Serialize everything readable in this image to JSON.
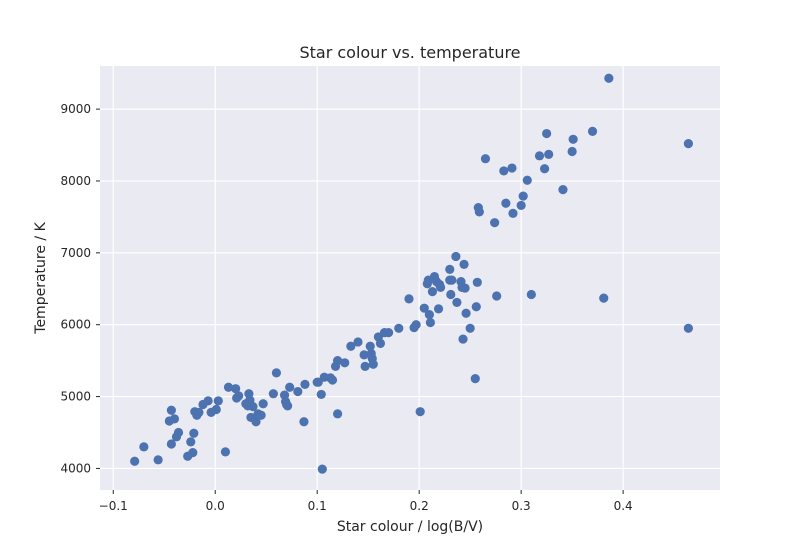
{
  "chart_data": {
    "type": "scatter",
    "title": "Star colour vs. temperature",
    "xlabel": "Star colour / log(B/V)",
    "ylabel": "Temperature / K",
    "xlim": [
      -0.113,
      0.495
    ],
    "ylim": [
      3700,
      9600
    ],
    "xticks": [
      -0.1,
      0.0,
      0.1,
      0.2,
      0.3,
      0.4
    ],
    "xtick_labels": [
      "−0.1",
      "0.0",
      "0.1",
      "0.2",
      "0.3",
      "0.4"
    ],
    "yticks": [
      4000,
      5000,
      6000,
      7000,
      8000,
      9000
    ],
    "ytick_labels": [
      "4000",
      "5000",
      "6000",
      "7000",
      "8000",
      "9000"
    ],
    "grid": true,
    "colors": {
      "background": "#eaeaf2",
      "marker": "#4c72b0",
      "grid": "#ffffff"
    },
    "points": [
      [
        -0.079,
        4100
      ],
      [
        -0.07,
        4300
      ],
      [
        -0.056,
        4120
      ],
      [
        -0.045,
        4660
      ],
      [
        -0.043,
        4810
      ],
      [
        -0.043,
        4340
      ],
      [
        -0.04,
        4690
      ],
      [
        -0.038,
        4440
      ],
      [
        -0.036,
        4500
      ],
      [
        -0.027,
        4170
      ],
      [
        -0.024,
        4370
      ],
      [
        -0.022,
        4220
      ],
      [
        -0.021,
        4490
      ],
      [
        -0.02,
        4790
      ],
      [
        -0.018,
        4740
      ],
      [
        -0.016,
        4780
      ],
      [
        -0.012,
        4890
      ],
      [
        -0.007,
        4940
      ],
      [
        -0.004,
        4780
      ],
      [
        0.001,
        4820
      ],
      [
        0.003,
        4940
      ],
      [
        0.01,
        4230
      ],
      [
        0.013,
        5130
      ],
      [
        0.02,
        5110
      ],
      [
        0.021,
        4980
      ],
      [
        0.023,
        5010
      ],
      [
        0.03,
        4900
      ],
      [
        0.032,
        4870
      ],
      [
        0.033,
        5040
      ],
      [
        0.034,
        4950
      ],
      [
        0.035,
        4710
      ],
      [
        0.037,
        4860
      ],
      [
        0.04,
        4650
      ],
      [
        0.042,
        4760
      ],
      [
        0.045,
        4740
      ],
      [
        0.047,
        4900
      ],
      [
        0.057,
        5040
      ],
      [
        0.06,
        5330
      ],
      [
        0.068,
        5020
      ],
      [
        0.069,
        4930
      ],
      [
        0.07,
        4890
      ],
      [
        0.071,
        4870
      ],
      [
        0.073,
        5130
      ],
      [
        0.081,
        5070
      ],
      [
        0.087,
        4650
      ],
      [
        0.088,
        5170
      ],
      [
        0.1,
        5200
      ],
      [
        0.101,
        5200
      ],
      [
        0.104,
        5030
      ],
      [
        0.105,
        3990
      ],
      [
        0.107,
        5270
      ],
      [
        0.113,
        5260
      ],
      [
        0.115,
        5230
      ],
      [
        0.118,
        5420
      ],
      [
        0.12,
        5500
      ],
      [
        0.12,
        4760
      ],
      [
        0.127,
        5470
      ],
      [
        0.133,
        5700
      ],
      [
        0.14,
        5760
      ],
      [
        0.146,
        5580
      ],
      [
        0.147,
        5420
      ],
      [
        0.152,
        5700
      ],
      [
        0.153,
        5600
      ],
      [
        0.154,
        5530
      ],
      [
        0.155,
        5450
      ],
      [
        0.16,
        5830
      ],
      [
        0.162,
        5740
      ],
      [
        0.166,
        5890
      ],
      [
        0.17,
        5890
      ],
      [
        0.18,
        5950
      ],
      [
        0.19,
        6360
      ],
      [
        0.195,
        5960
      ],
      [
        0.197,
        6000
      ],
      [
        0.201,
        4790
      ],
      [
        0.205,
        6230
      ],
      [
        0.208,
        6570
      ],
      [
        0.209,
        6620
      ],
      [
        0.21,
        6140
      ],
      [
        0.211,
        6030
      ],
      [
        0.213,
        6460
      ],
      [
        0.215,
        6670
      ],
      [
        0.217,
        6600
      ],
      [
        0.219,
        6220
      ],
      [
        0.22,
        6560
      ],
      [
        0.221,
        6520
      ],
      [
        0.23,
        6770
      ],
      [
        0.23,
        6620
      ],
      [
        0.231,
        6420
      ],
      [
        0.232,
        6620
      ],
      [
        0.236,
        6950
      ],
      [
        0.237,
        6310
      ],
      [
        0.241,
        6600
      ],
      [
        0.242,
        6520
      ],
      [
        0.243,
        5800
      ],
      [
        0.244,
        6840
      ],
      [
        0.245,
        6510
      ],
      [
        0.246,
        6160
      ],
      [
        0.25,
        5950
      ],
      [
        0.255,
        5250
      ],
      [
        0.256,
        6250
      ],
      [
        0.257,
        6590
      ],
      [
        0.258,
        7630
      ],
      [
        0.259,
        7570
      ],
      [
        0.265,
        8310
      ],
      [
        0.274,
        7420
      ],
      [
        0.276,
        6400
      ],
      [
        0.283,
        8140
      ],
      [
        0.285,
        7690
      ],
      [
        0.291,
        8180
      ],
      [
        0.292,
        7550
      ],
      [
        0.3,
        7660
      ],
      [
        0.302,
        7790
      ],
      [
        0.306,
        8010
      ],
      [
        0.31,
        6420
      ],
      [
        0.318,
        8350
      ],
      [
        0.323,
        8170
      ],
      [
        0.325,
        8660
      ],
      [
        0.327,
        8370
      ],
      [
        0.341,
        7880
      ],
      [
        0.35,
        8410
      ],
      [
        0.351,
        8580
      ],
      [
        0.37,
        8690
      ],
      [
        0.381,
        6370
      ],
      [
        0.386,
        9430
      ],
      [
        0.464,
        8520
      ],
      [
        0.464,
        5950
      ]
    ]
  }
}
